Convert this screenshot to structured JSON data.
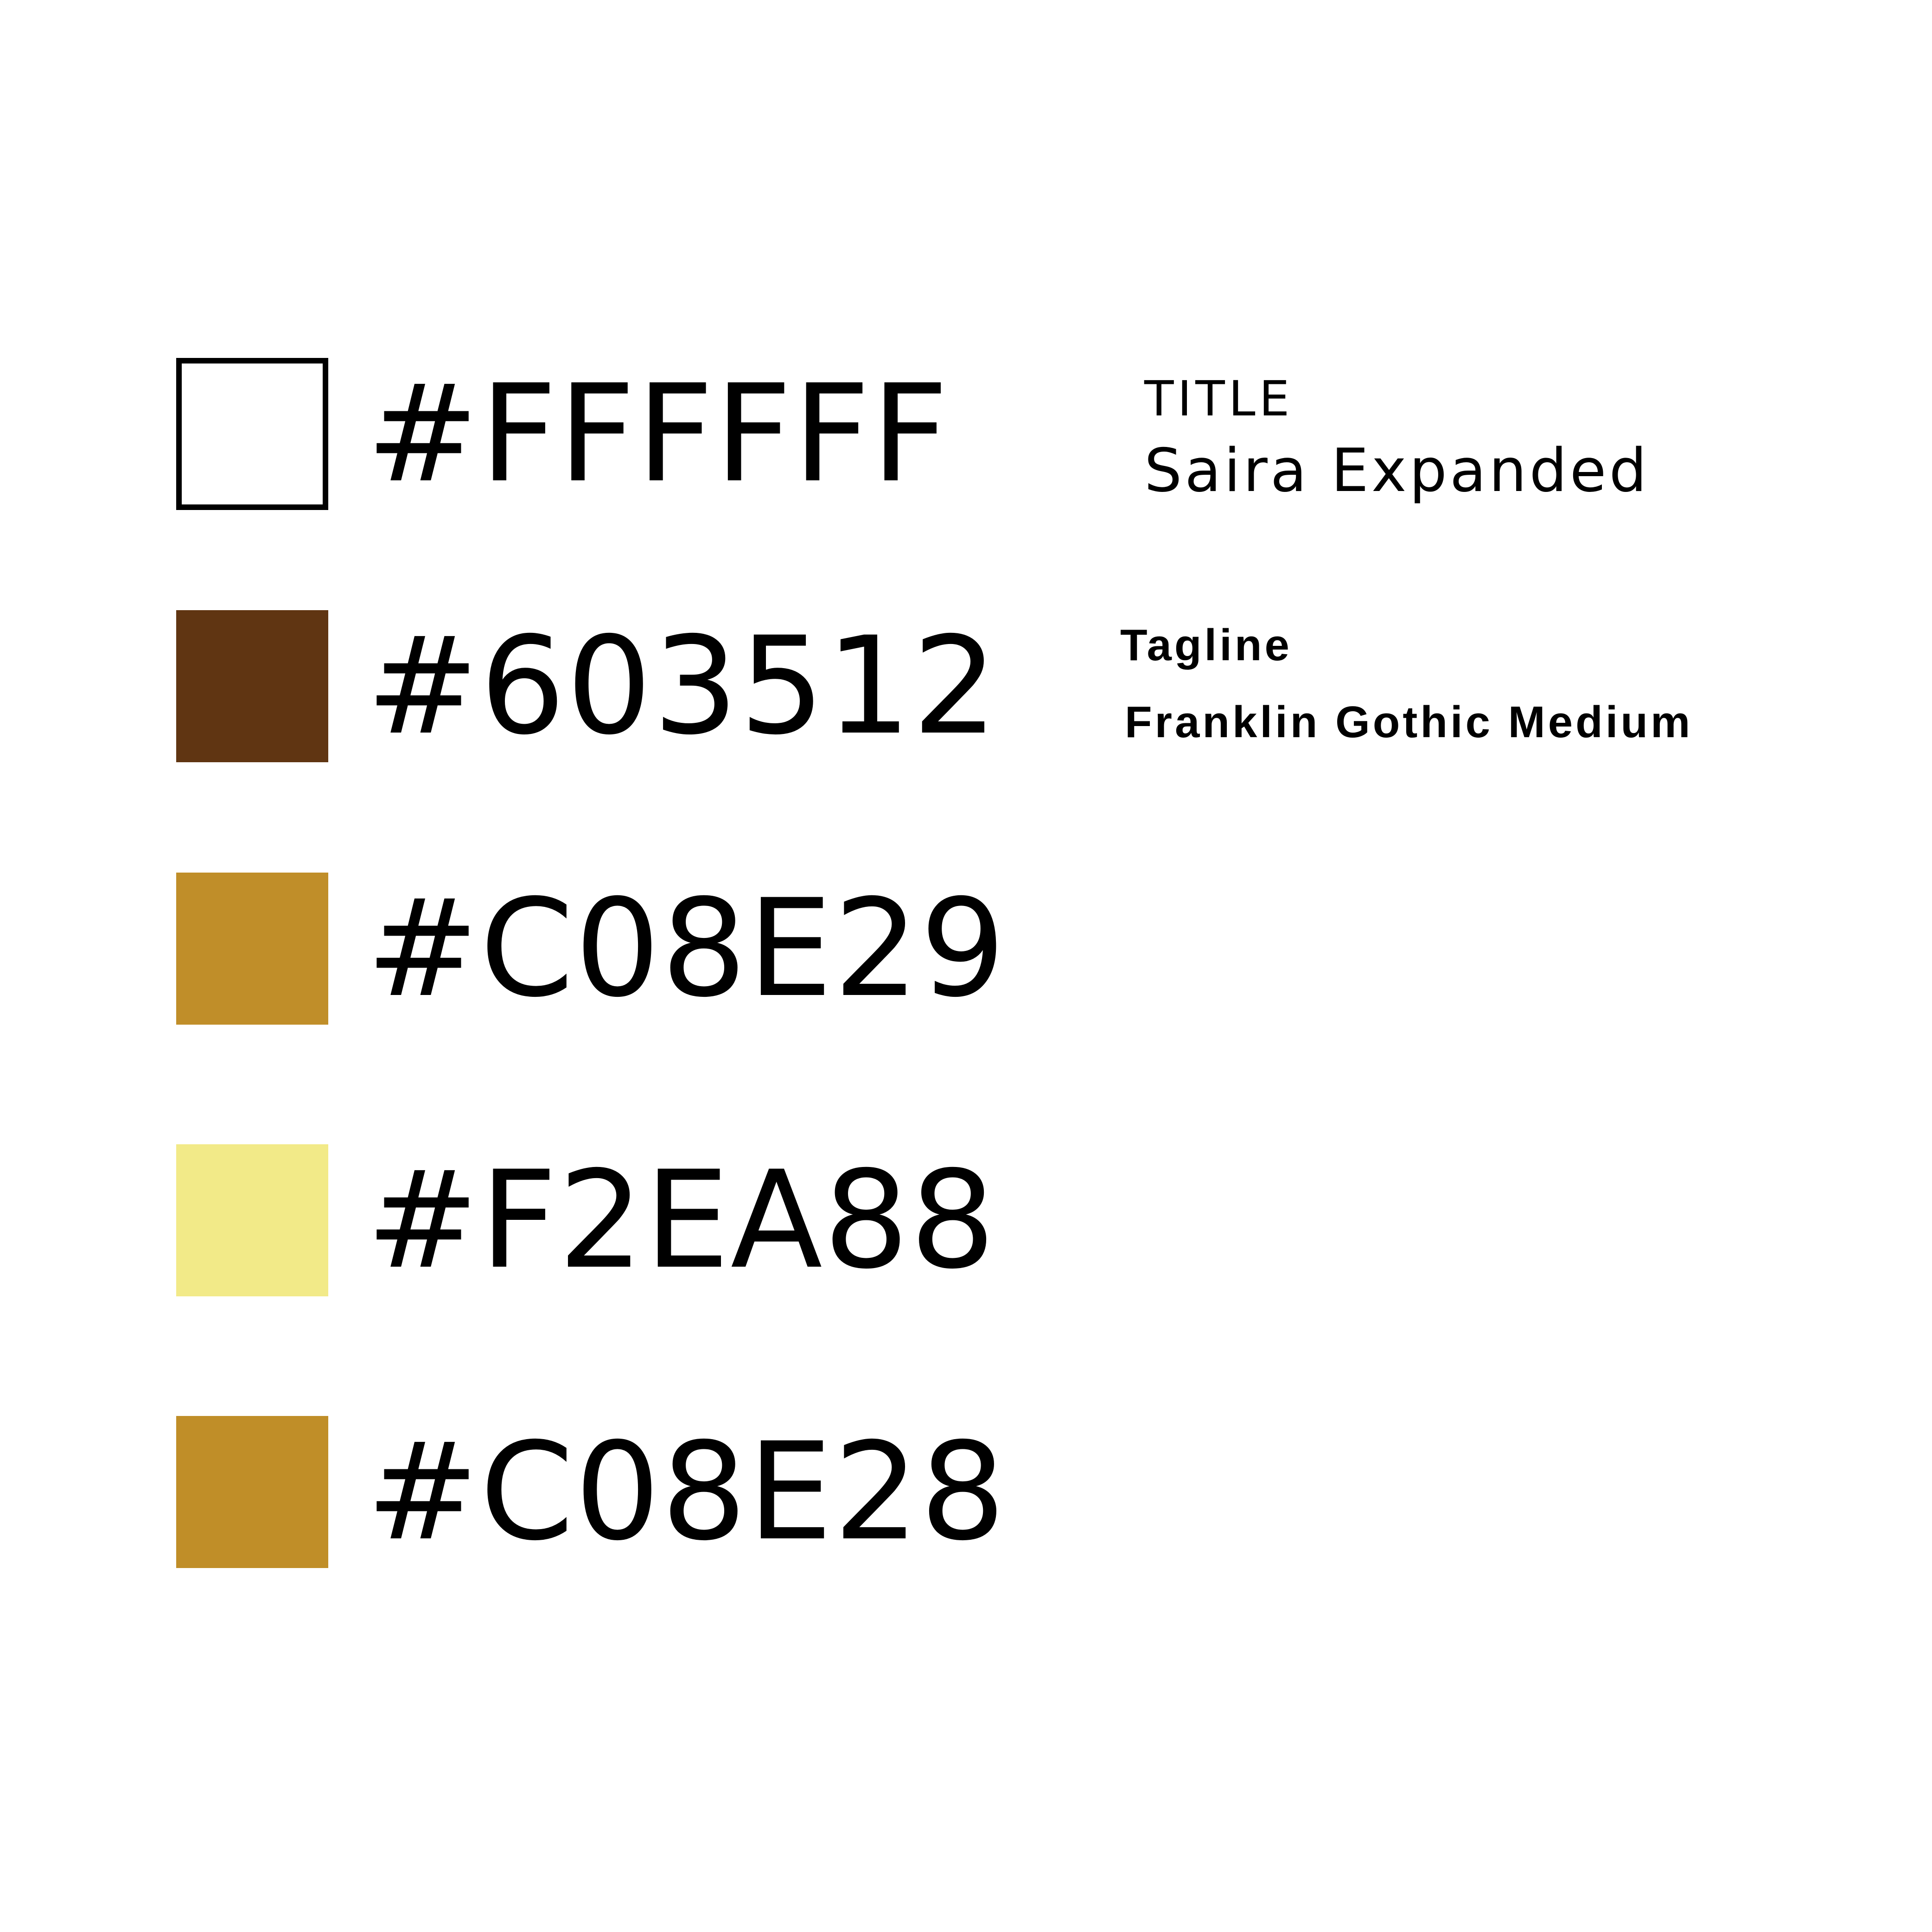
{
  "palette": {
    "swatches": [
      {
        "hex": "#FFFFFF",
        "label": "#FFFFFF"
      },
      {
        "hex": "#603512",
        "label": "#603512"
      },
      {
        "hex": "#C08E29",
        "label": "#C08E29"
      },
      {
        "hex": "#F2EA88",
        "label": "#F2EA88"
      },
      {
        "hex": "#C08E28",
        "label": "#C08E28"
      }
    ]
  },
  "typography": {
    "title": {
      "role": "TITLE",
      "font": "Saira Expanded"
    },
    "tagline": {
      "role": "Tagline",
      "font": "Franklin Gothic Medium"
    }
  }
}
